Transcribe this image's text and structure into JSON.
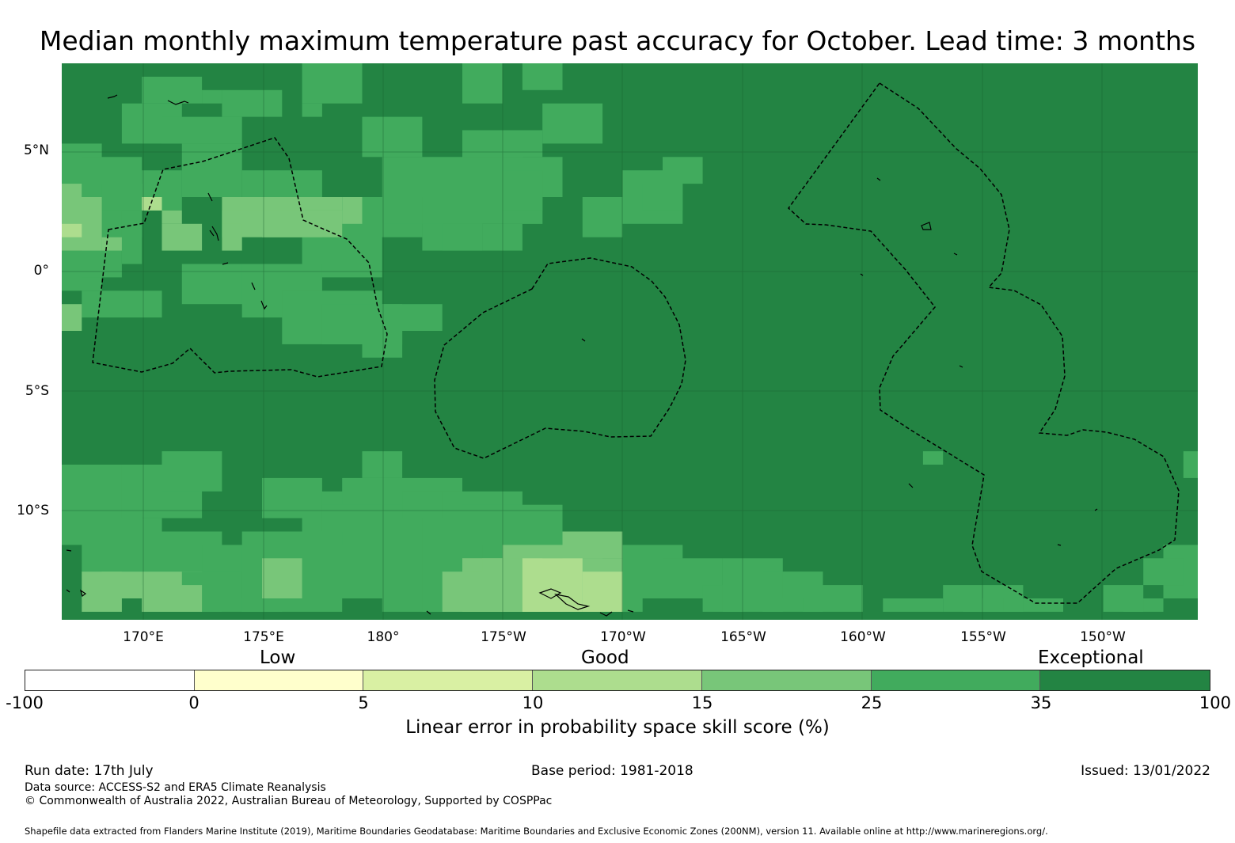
{
  "title": "Median monthly maximum temperature past accuracy for October. Lead time: 3 months",
  "map": {
    "lat_labels": [
      "5°N",
      "0°",
      "5°S",
      "10°S"
    ],
    "lon_labels": [
      "170°E",
      "175°E",
      "180°",
      "175°W",
      "170°W",
      "165°W",
      "160°W",
      "155°W",
      "150°W"
    ],
    "background_color": "#238443"
  },
  "legend": {
    "categories": [
      "Low",
      "Good",
      "Exceptional"
    ],
    "ticks": [
      "-100",
      "0",
      "5",
      "10",
      "15",
      "25",
      "35",
      "100"
    ],
    "colors": [
      "#ffffff",
      "#ffffcc",
      "#d9f0a3",
      "#addd8e",
      "#78c679",
      "#41ab5d",
      "#238443"
    ],
    "title": "Linear error in probability space skill score (%)"
  },
  "footer": {
    "run_date": "Run date: 17th July",
    "base_period": "Base period: 1981-2018",
    "issued": "Issued: 13/01/2022",
    "data_source": "Data source: ACCESS-S2 and ERA5 Climate Reanalysis",
    "copyright": "© Commonwealth of Australia 2022, Australian Bureau of Meteorology, Supported by COSPPac",
    "shapefile": "Shapefile data extracted from Flanders Marine Institute (2019), Maritime Boundaries Geodatabase: Maritime Boundaries and Exclusive Economic Zones (200NM), version 11. Available online at http://www.marineregions.org/."
  }
}
